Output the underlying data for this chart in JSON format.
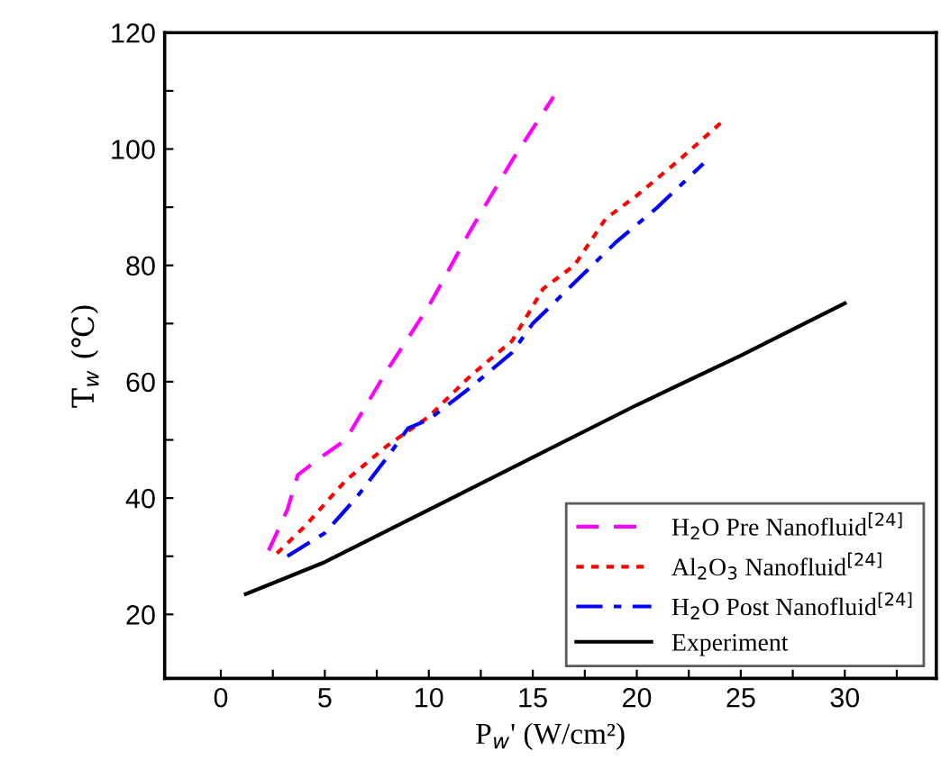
{
  "chart_data": {
    "type": "line",
    "xlabel": "P$_{w}$' (W/cm²)",
    "ylabel": "T$_{w}$ (℃)",
    "xlim": [
      -2.7,
      34.4
    ],
    "ylim": [
      9,
      120
    ],
    "xticks": [
      0,
      {
        "value": 2.5,
        "label": null
      },
      5,
      {
        "value": 7.5,
        "label": null
      },
      10,
      {
        "value": 12.5,
        "label": null
      },
      15,
      {
        "value": 17.5,
        "label": null
      },
      20,
      {
        "value": 22.5,
        "label": null
      },
      25,
      {
        "value": 27.5,
        "label": null
      },
      30,
      {
        "value": 32.5,
        "label": null
      }
    ],
    "yticks": [
      20,
      {
        "value": 30,
        "label": null
      },
      40,
      {
        "value": 50,
        "label": null
      },
      60,
      {
        "value": 70,
        "label": null
      },
      80,
      {
        "value": 90,
        "label": null
      },
      100,
      {
        "value": 110,
        "label": null
      },
      120
    ],
    "legend": "bottom right",
    "grid": false,
    "series": [
      {
        "name": "H$_{2}$O Pre Nanofluid$^{[24]}$",
        "color": "#ff00ff",
        "line_style": "dashed",
        "x": [
          2.3,
          3.2,
          3.7,
          5,
          6,
          8,
          10,
          12,
          14,
          16
        ],
        "values": [
          31,
          38,
          44,
          47.5,
          50,
          62,
          73,
          86,
          98,
          109
        ]
      },
      {
        "name": "Al$_{2}$O$_{3}$ Nanofluid$^{[24]}$",
        "color": "#ff0000",
        "line_style": "dotted",
        "x": [
          2.7,
          4,
          6,
          8,
          10,
          12,
          14,
          15.5,
          17,
          18.5,
          20,
          22,
          24.2
        ],
        "values": [
          30.5,
          35,
          43,
          49,
          54,
          61,
          67,
          76,
          80,
          88,
          92,
          98,
          105
        ]
      },
      {
        "name": "H$_{2}$O Post Nanofluid$^{[24]}$",
        "color": "#0000ff",
        "line_style": "dashdot",
        "x": [
          3.2,
          5,
          6.5,
          8,
          9,
          10,
          12,
          14,
          15,
          17,
          19,
          21,
          23.2
        ],
        "values": [
          30,
          34,
          40,
          47,
          52,
          53.5,
          59,
          65,
          70,
          77,
          84,
          90,
          97.5
        ]
      },
      {
        "name": "Experiment",
        "color": "#000000",
        "line_style": "solid",
        "x": [
          1.2,
          5,
          10,
          15,
          20,
          25,
          30
        ],
        "values": [
          23.5,
          29,
          38,
          47,
          56,
          64.5,
          73.5
        ]
      }
    ]
  }
}
